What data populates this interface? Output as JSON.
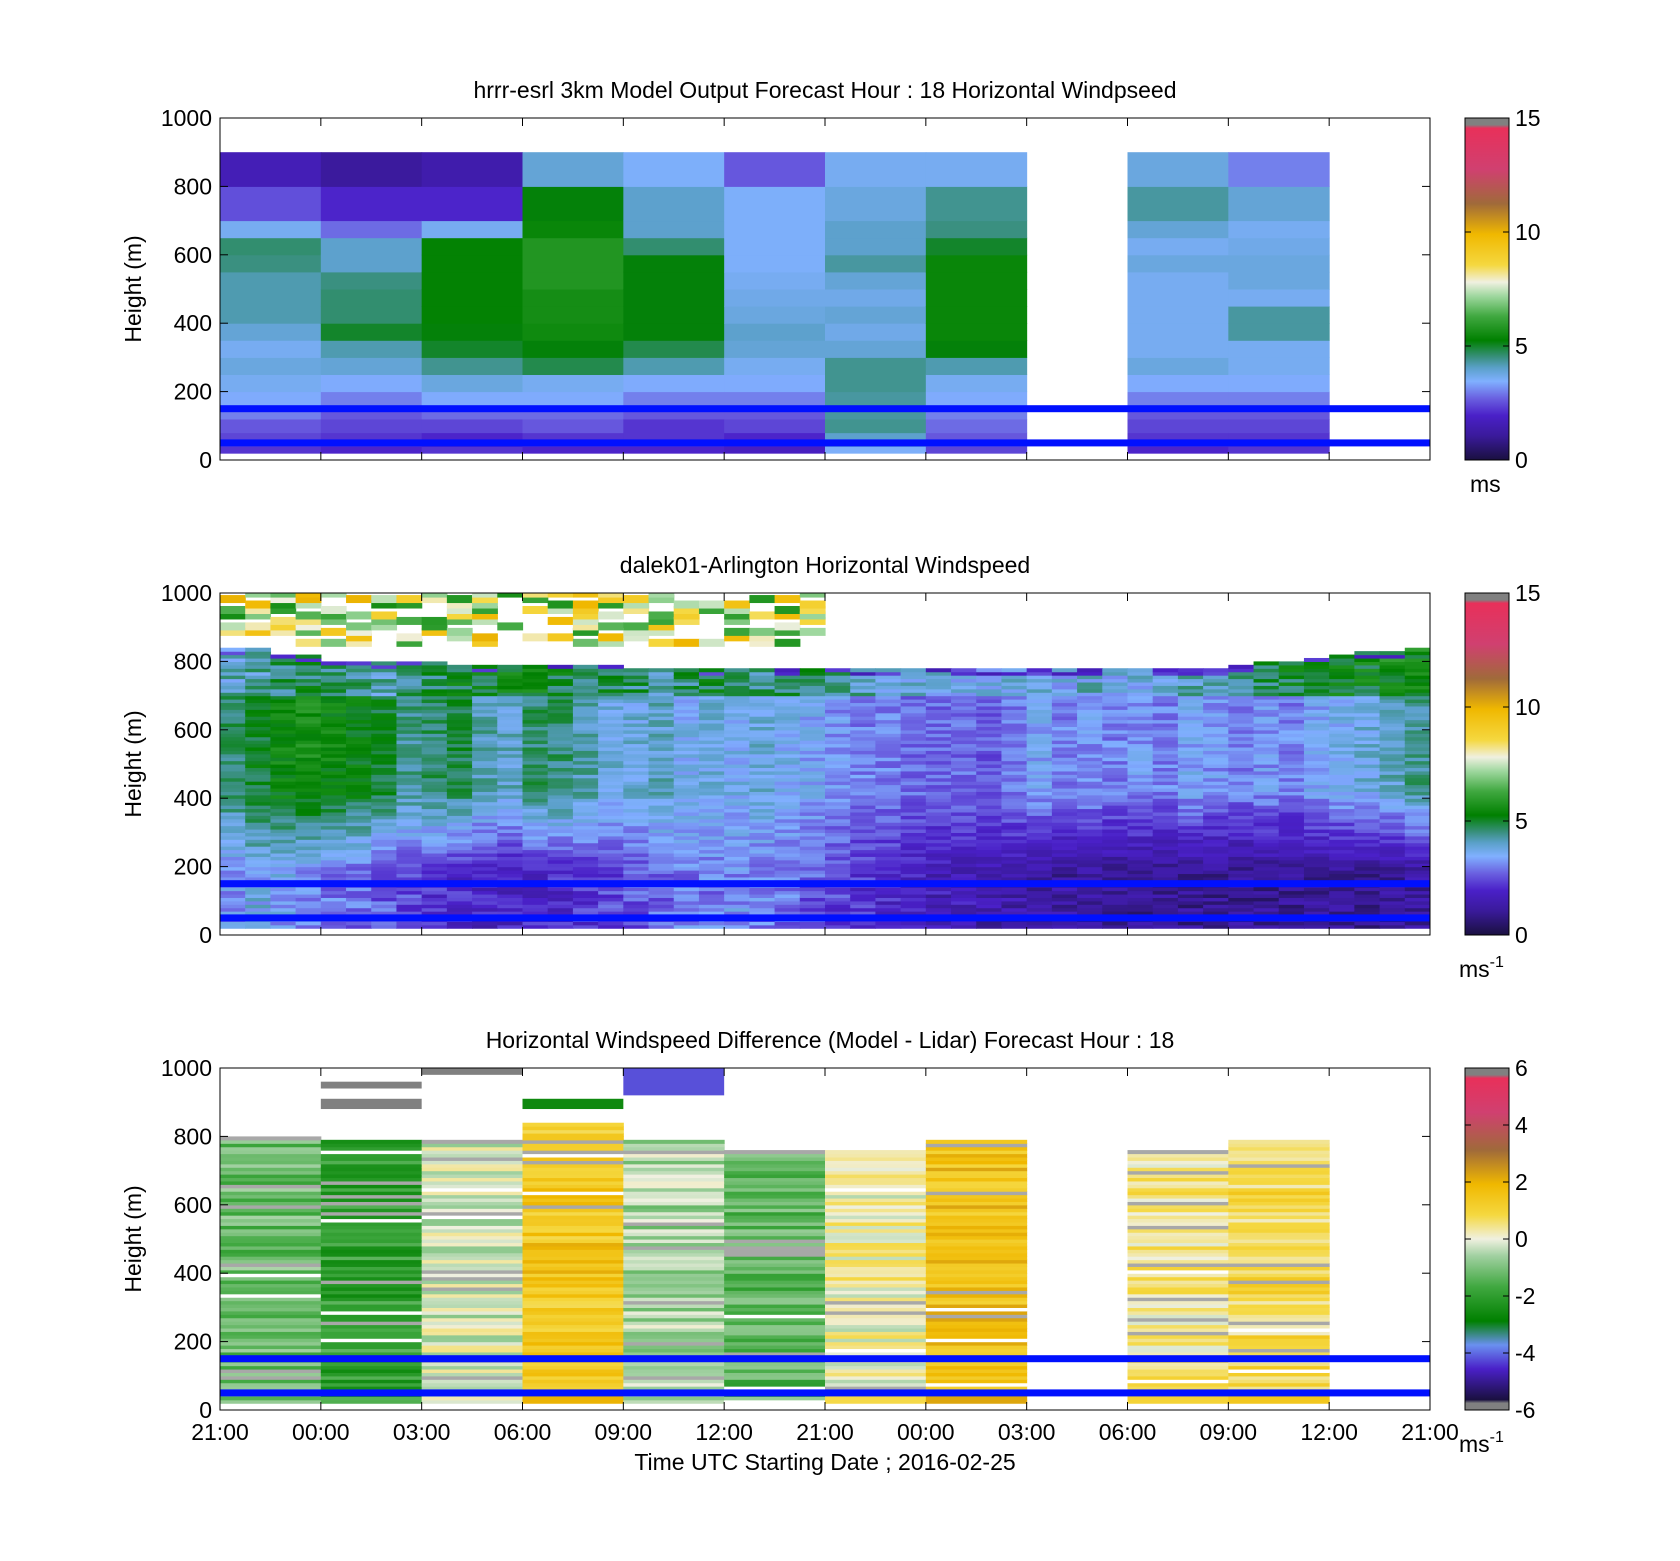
{
  "colors": {
    "windspeed_colormap": [
      "#1a1040",
      "#3a1a9a",
      "#4a20c8",
      "#6a60e0",
      "#6a90f0",
      "#80b0ff",
      "#5aa0c8",
      "#3a9080",
      "#1e7a3a",
      "#008000",
      "#40a840",
      "#90cc90",
      "#f0f0e0",
      "#f5d840",
      "#f0b800",
      "#d09020",
      "#9a6040",
      "#c04a70",
      "#e8305a",
      "#808080"
    ],
    "difference_colormap": [
      "#1a1040",
      "#4a20c8",
      "#6a90f0",
      "#008000",
      "#40a840",
      "#a0d0a0",
      "#f0f0e0",
      "#f5d840",
      "#f0b800",
      "#d09020",
      "#9a6040",
      "#c04a70",
      "#e8305a",
      "#808080"
    ],
    "reference_line": "#0010ff",
    "gap_gray": "#a8a8a8"
  },
  "chart_data": [
    {
      "type": "heatmap",
      "title": "hrrr-esrl 3km Model Output   Forecast Hour : 18 Horizontal Windpseed",
      "ylabel": "Height (m)",
      "ylim": [
        0,
        1000
      ],
      "yticks": [
        "0",
        "200",
        "400",
        "600",
        "800",
        "1000"
      ],
      "colorbar": {
        "ticks": [
          "0",
          "5",
          "10",
          "15"
        ],
        "range": [
          0,
          15
        ],
        "unit": "ms"
      },
      "x_categories": [
        "21:00",
        "00:00",
        "03:00",
        "06:00",
        "09:00",
        "12:00",
        "21:00",
        "00:00",
        "03:00",
        "06:00",
        "09:00",
        "12:00"
      ],
      "heights": [
        40,
        80,
        120,
        160,
        200,
        250,
        300,
        350,
        400,
        450,
        500,
        550,
        600,
        650,
        700,
        800,
        900,
        1000
      ],
      "columns": [
        [
          2.2,
          2.4,
          2.6,
          3.0,
          3.4,
          3.6,
          3.8,
          3.6,
          3.9,
          4.2,
          4.2,
          4.2,
          4.5,
          4.6,
          3.6,
          2.5,
          1.6,
          0
        ],
        [
          2.0,
          2.2,
          2.4,
          2.6,
          3.0,
          3.4,
          3.9,
          4.2,
          5.0,
          4.6,
          4.6,
          4.5,
          4.0,
          4.0,
          2.8,
          2.0,
          1.1,
          0
        ],
        [
          2.2,
          2.0,
          2.4,
          2.8,
          3.4,
          3.8,
          4.4,
          5.0,
          5.2,
          5.3,
          5.3,
          5.3,
          5.3,
          5.3,
          3.6,
          2.0,
          1.4,
          0
        ],
        [
          2.0,
          2.2,
          2.6,
          2.8,
          3.4,
          3.6,
          4.8,
          5.2,
          5.5,
          5.6,
          5.6,
          5.8,
          5.8,
          5.8,
          5.4,
          5.2,
          3.9,
          0
        ],
        [
          2.0,
          2.2,
          2.2,
          2.6,
          3.0,
          3.4,
          4.2,
          4.8,
          5.2,
          5.2,
          5.2,
          5.2,
          5.2,
          4.6,
          4.0,
          4.0,
          3.5,
          0
        ],
        [
          1.8,
          2.0,
          2.4,
          2.6,
          3.0,
          3.4,
          3.6,
          3.9,
          4.0,
          3.8,
          3.7,
          3.6,
          3.5,
          3.5,
          3.5,
          3.5,
          2.6,
          0
        ],
        [
          3.5,
          4.0,
          4.4,
          4.3,
          4.3,
          4.4,
          4.4,
          3.9,
          3.7,
          3.9,
          3.7,
          3.9,
          4.3,
          4.0,
          4.0,
          3.8,
          3.6,
          0
        ],
        [
          2.4,
          2.6,
          2.8,
          3.0,
          3.4,
          3.6,
          4.2,
          5.2,
          5.4,
          5.4,
          5.4,
          5.4,
          5.4,
          5.0,
          4.5,
          4.4,
          3.6,
          0
        ],
        [
          null,
          null,
          null,
          null,
          null,
          null,
          null,
          null,
          null,
          null,
          null,
          null,
          null,
          null,
          null,
          null,
          null,
          0
        ],
        [
          2.0,
          2.2,
          2.4,
          2.6,
          3.0,
          3.4,
          3.8,
          3.6,
          3.6,
          3.6,
          3.6,
          3.6,
          3.8,
          3.6,
          3.9,
          4.3,
          3.8,
          0
        ],
        [
          2.2,
          2.2,
          2.4,
          2.6,
          3.0,
          3.4,
          3.6,
          3.6,
          4.3,
          4.3,
          3.6,
          3.8,
          3.8,
          3.7,
          3.6,
          3.9,
          3.0,
          0
        ],
        [
          null,
          null,
          null,
          null,
          null,
          null,
          null,
          null,
          null,
          null,
          null,
          null,
          null,
          null,
          null,
          null,
          null,
          0
        ]
      ],
      "reference_lines_m": [
        50,
        150
      ]
    },
    {
      "type": "heatmap",
      "title": "dalek01-Arlington  Horizontal Windspeed",
      "ylabel": "Height (m)",
      "ylim": [
        0,
        1000
      ],
      "yticks": [
        "0",
        "200",
        "400",
        "600",
        "800",
        "1000"
      ],
      "colorbar": {
        "ticks": [
          "0",
          "5",
          "10",
          "15"
        ],
        "range": [
          0,
          15
        ],
        "unit": "ms",
        "unit_sup": "-1"
      },
      "x_hours": [
        0,
        66
      ],
      "column_step_hours": 1,
      "profiles": [
        {
          "low": 3.2,
          "mid": 4.6,
          "top": 4.0,
          "top_m": 840
        },
        {
          "low": 3.6,
          "mid": 5.0,
          "top": 4.2,
          "top_m": 840
        },
        {
          "low": 3.4,
          "mid": 5.4,
          "top": 4.6,
          "top_m": 820
        },
        {
          "low": 3.2,
          "mid": 5.6,
          "top": 4.8,
          "top_m": 820
        },
        {
          "low": 3.0,
          "mid": 5.4,
          "top": 4.6,
          "top_m": 800
        },
        {
          "low": 2.8,
          "mid": 5.2,
          "top": 4.4,
          "top_m": 800
        },
        {
          "low": 2.6,
          "mid": 5.0,
          "top": 4.2,
          "top_m": 800
        },
        {
          "low": 2.4,
          "mid": 4.4,
          "top": 4.6,
          "top_m": 800
        },
        {
          "low": 2.2,
          "mid": 4.6,
          "top": 4.8,
          "top_m": 800
        },
        {
          "low": 2.0,
          "mid": 4.8,
          "top": 5.0,
          "top_m": 790
        },
        {
          "low": 1.8,
          "mid": 4.2,
          "top": 5.0,
          "top_m": 790
        },
        {
          "low": 1.8,
          "mid": 4.0,
          "top": 5.2,
          "top_m": 790
        },
        {
          "low": 2.0,
          "mid": 4.6,
          "top": 5.2,
          "top_m": 790
        },
        {
          "low": 2.0,
          "mid": 4.6,
          "top": 5.0,
          "top_m": 790
        },
        {
          "low": 2.2,
          "mid": 4.2,
          "top": 4.8,
          "top_m": 790
        },
        {
          "low": 2.4,
          "mid": 3.8,
          "top": 4.8,
          "top_m": 790
        },
        {
          "low": 2.6,
          "mid": 3.8,
          "top": 4.6,
          "top_m": 780
        },
        {
          "low": 2.8,
          "mid": 4.0,
          "top": 4.4,
          "top_m": 780
        },
        {
          "low": 3.0,
          "mid": 3.6,
          "top": 4.6,
          "top_m": 780
        },
        {
          "low": 3.0,
          "mid": 3.8,
          "top": 4.8,
          "top_m": 780
        },
        {
          "low": 3.2,
          "mid": 3.6,
          "top": 4.6,
          "top_m": 780
        },
        {
          "low": 3.0,
          "mid": 3.8,
          "top": 4.4,
          "top_m": 780
        },
        {
          "low": 2.8,
          "mid": 3.6,
          "top": 4.6,
          "top_m": 780
        },
        {
          "low": 2.6,
          "mid": 3.4,
          "top": 4.8,
          "top_m": 780
        },
        {
          "low": 2.4,
          "mid": 3.2,
          "top": 4.4,
          "top_m": 780
        },
        {
          "low": 2.2,
          "mid": 3.0,
          "top": 4.2,
          "top_m": 780
        },
        {
          "low": 2.0,
          "mid": 3.0,
          "top": 4.0,
          "top_m": 780
        },
        {
          "low": 1.8,
          "mid": 2.8,
          "top": 3.8,
          "top_m": 780
        },
        {
          "low": 1.6,
          "mid": 2.8,
          "top": 3.6,
          "top_m": 780
        },
        {
          "low": 1.6,
          "mid": 2.8,
          "top": 3.8,
          "top_m": 780
        },
        {
          "low": 1.4,
          "mid": 2.6,
          "top": 3.8,
          "top_m": 780
        },
        {
          "low": 1.4,
          "mid": 3.0,
          "top": 3.8,
          "top_m": 780
        },
        {
          "low": 1.2,
          "mid": 3.4,
          "top": 3.6,
          "top_m": 780
        },
        {
          "low": 1.2,
          "mid": 3.0,
          "top": 3.6,
          "top_m": 780
        },
        {
          "low": 1.2,
          "mid": 3.2,
          "top": 3.8,
          "top_m": 780
        },
        {
          "low": 1.0,
          "mid": 3.0,
          "top": 3.6,
          "top_m": 780
        },
        {
          "low": 1.0,
          "mid": 3.2,
          "top": 3.8,
          "top_m": 780
        },
        {
          "low": 1.0,
          "mid": 3.0,
          "top": 4.0,
          "top_m": 780
        },
        {
          "low": 1.0,
          "mid": 3.4,
          "top": 4.2,
          "top_m": 780
        },
        {
          "low": 1.0,
          "mid": 3.2,
          "top": 4.4,
          "top_m": 780
        },
        {
          "low": 1.0,
          "mid": 3.0,
          "top": 4.6,
          "top_m": 790
        },
        {
          "low": 1.0,
          "mid": 3.2,
          "top": 4.8,
          "top_m": 800
        },
        {
          "low": 1.0,
          "mid": 3.0,
          "top": 5.0,
          "top_m": 800
        },
        {
          "low": 1.0,
          "mid": 3.4,
          "top": 5.2,
          "top_m": 810
        },
        {
          "low": 1.0,
          "mid": 3.6,
          "top": 5.2,
          "top_m": 820
        },
        {
          "low": 1.0,
          "mid": 3.8,
          "top": 5.2,
          "top_m": 830
        },
        {
          "low": 1.0,
          "mid": 4.0,
          "top": 5.4,
          "top_m": 830
        },
        {
          "low": 1.2,
          "mid": 4.4,
          "top": 5.4,
          "top_m": 840
        }
      ],
      "upper_patches_m": [
        850,
        1000
      ],
      "reference_lines_m": [
        50,
        150
      ]
    },
    {
      "type": "heatmap",
      "title": "Horizontal Windspeed Difference (Model - Lidar) Forecast Hour : 18",
      "ylabel": "Height (m)",
      "xlabel": "Time UTC  Starting Date ; 2016-02-25",
      "ylim": [
        0,
        1000
      ],
      "yticks": [
        "0",
        "200",
        "400",
        "600",
        "800",
        "1000"
      ],
      "xticks": [
        "21:00",
        "00:00",
        "03:00",
        "06:00",
        "09:00",
        "12:00",
        "21:00",
        "00:00",
        "03:00",
        "06:00",
        "09:00",
        "12:00",
        "21:00"
      ],
      "colorbar": {
        "ticks": [
          "-6",
          "-4",
          "-2",
          "0",
          "2",
          "4",
          "6"
        ],
        "range": [
          -6,
          6
        ],
        "unit": "ms",
        "unit_sup": "-1"
      },
      "columns": [
        {
          "mean": -1.2,
          "top_m": 800
        },
        {
          "mean": -2.0,
          "top_m": 790
        },
        {
          "mean": -0.2,
          "top_m": 790
        },
        {
          "mean": 1.4,
          "top_m": 840
        },
        {
          "mean": -0.6,
          "top_m": 790
        },
        {
          "mean": -1.4,
          "top_m": 760
        },
        {
          "mean": 0.2,
          "top_m": 760
        },
        {
          "mean": 1.6,
          "top_m": 790
        },
        {
          "mean": null,
          "top_m": 0
        },
        {
          "mean": 0.4,
          "top_m": 760
        },
        {
          "mean": 0.8,
          "top_m": 790
        },
        {
          "mean": null,
          "top_m": 0
        }
      ],
      "upper_patches": [
        {
          "col": 1,
          "from_m": 940,
          "to_m": 960,
          "value": 6
        },
        {
          "col": 1,
          "from_m": 880,
          "to_m": 910,
          "value": 6
        },
        {
          "col": 2,
          "from_m": 980,
          "to_m": 1000,
          "value": 6
        },
        {
          "col": 3,
          "from_m": 880,
          "to_m": 910,
          "value": -2.6
        },
        {
          "col": 4,
          "from_m": 920,
          "to_m": 1000,
          "value": -4.2
        }
      ],
      "reference_lines_m": [
        50,
        150
      ]
    }
  ]
}
